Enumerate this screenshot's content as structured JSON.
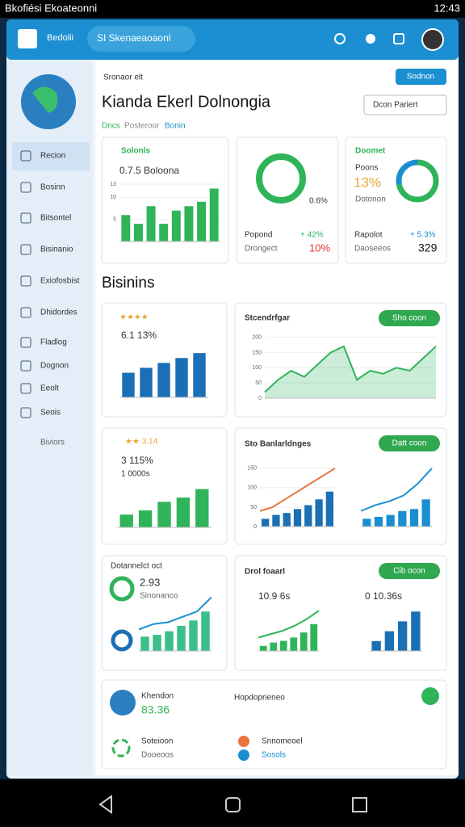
{
  "status_bar": {
    "carrier": "Bkofiési Ekoateonni",
    "time": "12:43"
  },
  "header": {
    "brand": "Bedolii",
    "search": "SI Skenaeaoaonl"
  },
  "sidebar": {
    "items": [
      "Recion",
      "Bosinn",
      "Bitsontel",
      "Bisinanio",
      "Exiofosbist",
      "Dhidordes",
      "Fladlog",
      "Dognon",
      "Eeolt",
      "Seois"
    ],
    "more": "Biviors"
  },
  "page": {
    "breadcrumb": "Sronaor elt",
    "action": "Sodnon",
    "title": "Kianda Ekerl Dolnongia",
    "dropdown": "Dcon Pariert",
    "tabs": [
      "Dncs",
      "Posteroor",
      "Bonin"
    ],
    "section": "Bisinins"
  },
  "kpi1": {
    "title": "Solonls",
    "subtitle": "0.7.5 Boloona"
  },
  "kpi2": {
    "center": "0.6%",
    "label1": "Popond",
    "change1": "+ 42%",
    "label2": "Drongect",
    "change2": "10%"
  },
  "kpi3": {
    "title": "Doomet",
    "label": "Poons",
    "value": "13%",
    "sublabel": "Dotonon",
    "label1": "Rapolot",
    "change1": "+ 5.3%",
    "label2": "Daoseeos",
    "value2": "329",
    "donut": [
      72,
      28
    ],
    "donut_colors": [
      "#2fb45a",
      "#1a8fd0"
    ]
  },
  "card_a": {
    "rating": "★★★★",
    "value": "6.1 13%"
  },
  "card_b": {
    "title": "Stcendrfgar",
    "button": "Sho coon"
  },
  "card_c": {
    "rating": "★★ 3.14",
    "value": "3 115%",
    "sub": "1 0000s"
  },
  "card_d": {
    "title": "Sto Banlarldnges",
    "button": "Datt coon"
  },
  "card_e": {
    "title": "Dotannelct oct",
    "value": "2.93",
    "sub": "Sinonanco"
  },
  "card_f": {
    "title": "Drol foaarl",
    "button": "Cib ocon",
    "value1": "10.9 6s",
    "value2": "0 10.36s"
  },
  "bottom": {
    "title": "Khendon",
    "value": "83.36",
    "heading": "Hopdoprieneo",
    "item1": "Soteioon",
    "item2": "Dooeoos",
    "item3": "Snnomeoel",
    "item4": "Sosols"
  },
  "charts": [
    {
      "bars": [
        6,
        4,
        8,
        4,
        7,
        8,
        9,
        12
      ],
      "bar_color": "#2fb45a",
      "ylim": [
        0,
        13
      ],
      "yticks": [
        5,
        10,
        13
      ]
    },
    {
      "bars": [
        5,
        6,
        7,
        8,
        9
      ],
      "bar_color": "#1a6fb5",
      "ylim": [
        0,
        11
      ]
    },
    {
      "line": [
        20,
        60,
        90,
        70,
        110,
        150,
        170,
        60,
        90,
        80,
        100,
        90,
        130,
        170
      ],
      "line_color": "#2fb45a",
      "area": true,
      "ylim": [
        0,
        220
      ],
      "yticks": [
        0,
        50,
        100,
        150,
        200
      ]
    },
    {
      "bars": [
        3,
        4,
        6,
        7,
        9
      ],
      "bar_color": "#2fb45a",
      "ylim": [
        0,
        11
      ]
    },
    {
      "bars": [
        20,
        30,
        35,
        45,
        55,
        70,
        90
      ],
      "bar_color": "#1a6fb5",
      "line": [
        40,
        50,
        70,
        90,
        110,
        130,
        150
      ],
      "line_color": "#e8743b",
      "ylim": [
        0,
        160
      ],
      "yticks": [
        0,
        50,
        100,
        150
      ]
    },
    {
      "bars": [
        20,
        25,
        30,
        40,
        45,
        70
      ],
      "bar_color": "#1a8fd0",
      "line": [
        40,
        55,
        65,
        80,
        110,
        150
      ],
      "line_color": "#1a8fd0",
      "ylim": [
        0,
        160
      ]
    },
    {
      "bars": [
        40,
        45,
        55,
        70,
        85,
        110
      ],
      "bar_color": "#3bbf8a",
      "line": [
        60,
        75,
        80,
        95,
        110,
        150
      ],
      "line_color": "#1a8fd0",
      "ylim": [
        0,
        160
      ]
    },
    {
      "bars": [
        15,
        25,
        30,
        40,
        55,
        80
      ],
      "bar_color": "#2fb45a",
      "line": [
        40,
        50,
        60,
        75,
        95,
        120
      ],
      "line_color": "#2fb45a",
      "ylim": [
        0,
        130
      ]
    },
    {
      "bars": [
        20,
        40,
        60,
        80
      ],
      "bar_color": "#1a6fb5",
      "ylim": [
        0,
        100
      ]
    }
  ]
}
